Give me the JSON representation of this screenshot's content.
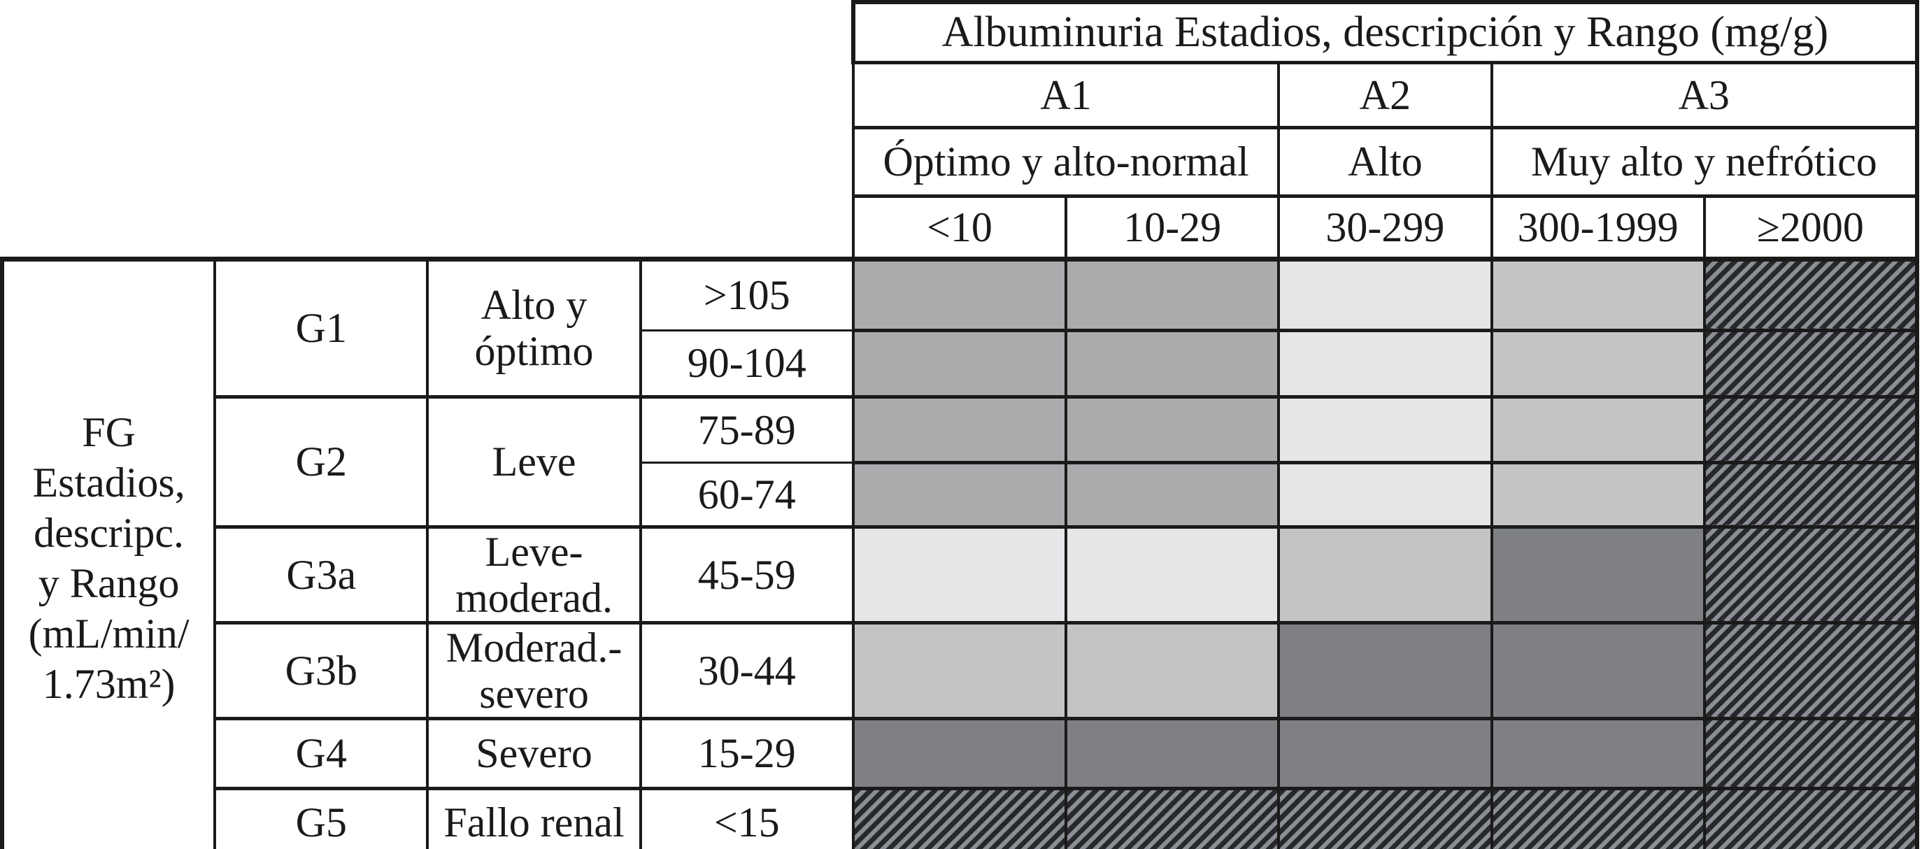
{
  "albuminuria": {
    "title": "Albuminuria Estadios, descripción y Rango (mg/g)",
    "stages": [
      {
        "code": "A1",
        "description": "Óptimo y alto-normal",
        "ranges": [
          "<10",
          "10-29"
        ]
      },
      {
        "code": "A2",
        "description": "Alto",
        "ranges": [
          "30-299"
        ]
      },
      {
        "code": "A3",
        "description": "Muy alto y nefrótico",
        "ranges": [
          "300-1999",
          "≥2000"
        ]
      }
    ],
    "range_row": [
      "<10",
      "10-29",
      "30-299",
      "300-1999",
      "≥2000"
    ]
  },
  "fg": {
    "label": "FG\nEstadios,\ndescripc.\ny Rango\n(mL/min/\n1.73m²)",
    "stages": [
      {
        "code": "G1",
        "description": "Alto y óptimo",
        "ranges": [
          ">105",
          "90-104"
        ]
      },
      {
        "code": "G2",
        "description": "Leve",
        "ranges": [
          "75-89",
          "60-74"
        ]
      },
      {
        "code": "G3a",
        "description": "Leve-moderad.",
        "ranges": [
          "45-59"
        ]
      },
      {
        "code": "G3b",
        "description": "Moderad.-severo",
        "ranges": [
          "30-44"
        ]
      },
      {
        "code": "G4",
        "description": "Severo",
        "ranges": [
          "15-29"
        ]
      },
      {
        "code": "G5",
        "description": "Fallo renal",
        "ranges": [
          "<15"
        ]
      }
    ]
  },
  "risk_grid": [
    [
      "m",
      "m",
      "xl",
      "lm",
      "hx"
    ],
    [
      "m",
      "m",
      "xl",
      "lm",
      "hx"
    ],
    [
      "m",
      "m",
      "xl",
      "lm",
      "hx"
    ],
    [
      "m",
      "m",
      "xl",
      "lm",
      "hx"
    ],
    [
      "xl",
      "xl",
      "lm",
      "dk",
      "hx"
    ],
    [
      "lm",
      "lm",
      "dk",
      "dk",
      "hx"
    ],
    [
      "dk",
      "dk",
      "dk",
      "dk",
      "hx"
    ],
    [
      "hx",
      "hx",
      "hx",
      "hx",
      "hx"
    ]
  ],
  "colors": {
    "cell_medium": "#aaabad",
    "cell_xlight": "#e5e6e8",
    "cell_lmed": "#c3c4c6",
    "cell_dark": "#7e8083",
    "hatch_dark": "#26282c",
    "hatch_light": "#8b8e94",
    "border": "#1a1a1a",
    "background": "#ffffff"
  }
}
